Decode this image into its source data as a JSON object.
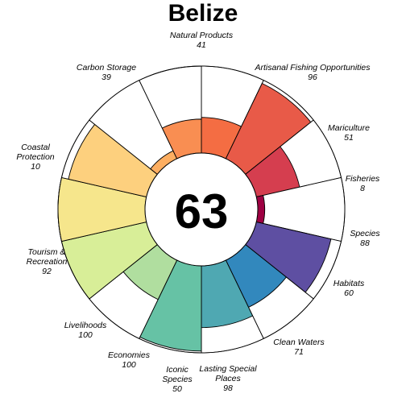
{
  "chart_data": {
    "type": "flower",
    "title": "Belize",
    "score": "63",
    "rmax": 100,
    "petals": [
      {
        "name": "Natural Products",
        "value": 41,
        "color": "#F46D43",
        "lines": [
          "Natural Products"
        ]
      },
      {
        "name": "Artisanal Fishing Opportunities",
        "value": 96,
        "color": "#E85A48",
        "lines": [
          "Artisanal Fishing Opportunities"
        ]
      },
      {
        "name": "Mariculture",
        "value": 51,
        "color": "#D53E4F",
        "lines": [
          "Mariculture"
        ]
      },
      {
        "name": "Fisheries",
        "value": 8,
        "color": "#9E0142",
        "lines": [
          "Fisheries"
        ]
      },
      {
        "name": "Species",
        "value": 88,
        "color": "#5E4FA2",
        "lines": [
          "Species"
        ]
      },
      {
        "name": "Habitats",
        "value": 60,
        "color": "#3288BD",
        "lines": [
          "Habitats"
        ]
      },
      {
        "name": "Clean Waters",
        "value": 71,
        "color": "#4FA8B2",
        "lines": [
          "Clean Waters"
        ]
      },
      {
        "name": "Lasting Special Places",
        "value": 98,
        "color": "#66C2A5",
        "lines": [
          "Lasting Special",
          "Places"
        ]
      },
      {
        "name": "Iconic Species",
        "value": 50,
        "color": "#B0DE9F",
        "lines": [
          "Iconic",
          "Species"
        ]
      },
      {
        "name": "Economies",
        "value": 100,
        "color": "#D8EE98",
        "lines": [
          "Economies"
        ]
      },
      {
        "name": "Livelihoods",
        "value": 100,
        "color": "#F6E68C",
        "lines": [
          "Livelihoods"
        ]
      },
      {
        "name": "Tourism & Recreation",
        "value": 92,
        "color": "#FDD07E",
        "lines": [
          "Tourism &",
          "Recreation"
        ]
      },
      {
        "name": "Coastal Protection",
        "value": 10,
        "color": "#FDAE61",
        "lines": [
          "Coastal",
          "Protection"
        ]
      },
      {
        "name": "Carbon Storage",
        "value": 39,
        "color": "#F98E52",
        "lines": [
          "Carbon Storage"
        ]
      }
    ]
  }
}
